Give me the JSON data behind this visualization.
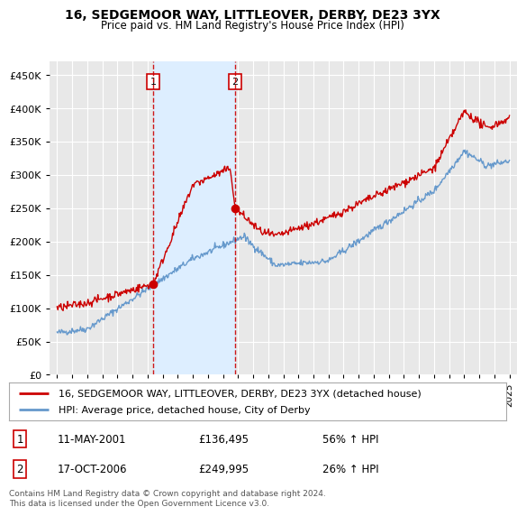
{
  "title": "16, SEDGEMOOR WAY, LITTLEOVER, DERBY, DE23 3YX",
  "subtitle": "Price paid vs. HM Land Registry's House Price Index (HPI)",
  "ylabel_ticks": [
    "£0",
    "£50K",
    "£100K",
    "£150K",
    "£200K",
    "£250K",
    "£300K",
    "£350K",
    "£400K",
    "£450K"
  ],
  "ytick_values": [
    0,
    50000,
    100000,
    150000,
    200000,
    250000,
    300000,
    350000,
    400000,
    450000
  ],
  "ylim": [
    0,
    470000
  ],
  "background_color": "#ffffff",
  "plot_bg_color": "#e8e8e8",
  "grid_color": "#ffffff",
  "red_line_color": "#cc0000",
  "blue_line_color": "#6699cc",
  "shade_color": "#ddeeff",
  "transaction1": {
    "date_num": 2001.37,
    "price": 136495,
    "label": "1"
  },
  "transaction2": {
    "date_num": 2006.8,
    "price": 249995,
    "label": "2"
  },
  "vline_color": "#cc0000",
  "legend_label1": "16, SEDGEMOOR WAY, LITTLEOVER, DERBY, DE23 3YX (detached house)",
  "legend_label2": "HPI: Average price, detached house, City of Derby",
  "table_row1": [
    "1",
    "11-MAY-2001",
    "£136,495",
    "56% ↑ HPI"
  ],
  "table_row2": [
    "2",
    "17-OCT-2006",
    "£249,995",
    "26% ↑ HPI"
  ],
  "footer": "Contains HM Land Registry data © Crown copyright and database right 2024.\nThis data is licensed under the Open Government Licence v3.0.",
  "xtick_years": [
    1995,
    1996,
    1997,
    1998,
    1999,
    2000,
    2001,
    2002,
    2003,
    2004,
    2005,
    2006,
    2007,
    2008,
    2009,
    2010,
    2011,
    2012,
    2013,
    2014,
    2015,
    2016,
    2017,
    2018,
    2019,
    2020,
    2021,
    2022,
    2023,
    2024,
    2025
  ]
}
